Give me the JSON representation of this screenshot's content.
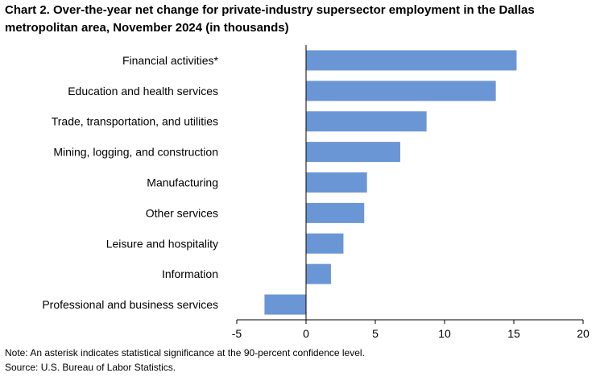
{
  "chart_data": {
    "type": "bar",
    "orientation": "horizontal",
    "title": "Chart 2. Over-the-year net change for private-industry supersector employment in the Dallas metropolitan area, November 2024 (in thousands)",
    "categories": [
      "Financial activities*",
      "Education and health services",
      "Trade, transportation, and utilities",
      "Mining, logging, and construction",
      "Manufacturing",
      "Other services",
      "Leisure and hospitality",
      "Information",
      "Professional and business services"
    ],
    "values": [
      15.2,
      13.7,
      8.7,
      6.8,
      4.4,
      4.2,
      2.7,
      1.8,
      -3.0
    ],
    "xlim": [
      -5,
      20
    ],
    "xticks": [
      "-5",
      "0",
      "5",
      "10",
      "15",
      "20"
    ],
    "xlabel": "",
    "ylabel": "",
    "bar_color": "#6b96d6",
    "grid": false
  },
  "footer": {
    "note": "Note: An asterisk indicates statistical significance at the 90-percent confidence level.",
    "source": "Source: U.S. Bureau of Labor Statistics."
  }
}
